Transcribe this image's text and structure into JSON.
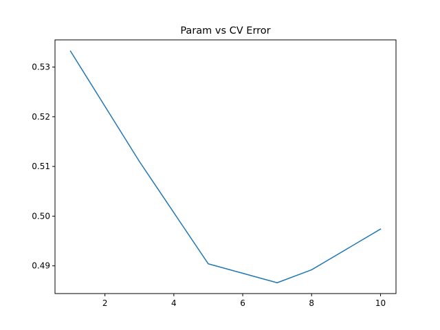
{
  "chart_data": {
    "type": "line",
    "title": "Param vs CV Error",
    "xlabel": "",
    "ylabel": "",
    "xlim": [
      0.55,
      10.45
    ],
    "ylim": [
      0.48442,
      0.53547
    ],
    "xticks": [
      2,
      4,
      6,
      8,
      10
    ],
    "xtick_labels": [
      "2",
      "4",
      "6",
      "8",
      "10"
    ],
    "yticks": [
      0.49,
      0.5,
      0.51,
      0.52,
      0.53
    ],
    "ytick_labels": [
      "0.49",
      "0.50",
      "0.51",
      "0.52",
      "0.53"
    ],
    "grid": false,
    "legend": "none",
    "series": [
      {
        "color": "#1f77b4",
        "x": [
          1,
          3,
          5,
          7,
          8,
          10
        ],
        "y": [
          0.5332,
          0.511,
          0.4904,
          0.4866,
          0.4892,
          0.4974
        ]
      }
    ]
  }
}
